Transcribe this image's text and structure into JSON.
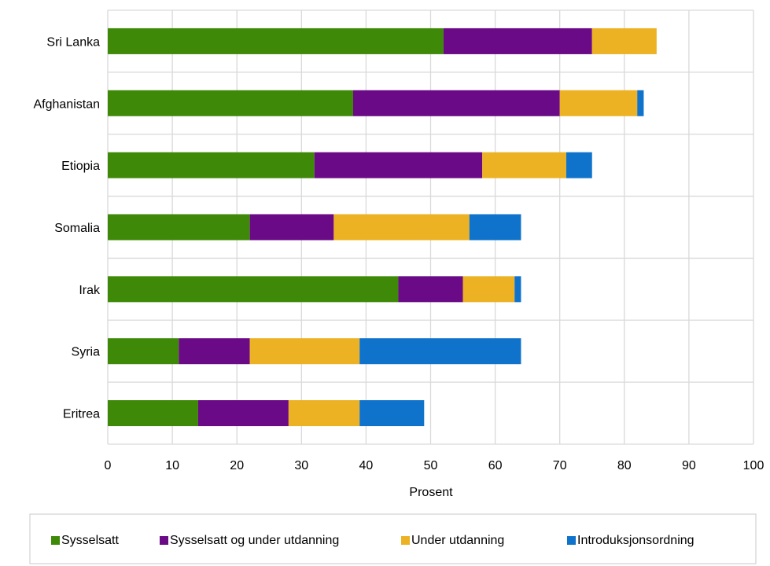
{
  "chart_data": {
    "type": "bar",
    "orientation": "horizontal",
    "stacked": true,
    "categories": [
      "Sri Lanka",
      "Afghanistan",
      "Etiopia",
      "Somalia",
      "Irak",
      "Syria",
      "Eritrea"
    ],
    "series": [
      {
        "name": "Sysselsatt",
        "color": "#3e8a08",
        "values": [
          52,
          38,
          32,
          22,
          45,
          11,
          14
        ]
      },
      {
        "name": "Sysselsatt og under utdanning",
        "color": "#6a0a86",
        "values": [
          23,
          32,
          26,
          13,
          10,
          11,
          14
        ]
      },
      {
        "name": "Under utdanning",
        "color": "#ecb223",
        "values": [
          10,
          12,
          13,
          21,
          8,
          17,
          11
        ]
      },
      {
        "name": "Introduksjonsordning",
        "color": "#0f73cc",
        "values": [
          0,
          1,
          4,
          8,
          1,
          25,
          10
        ]
      }
    ],
    "xlabel": "Prosent",
    "xlim": [
      0,
      100
    ],
    "xticks": [
      "0",
      "10",
      "20",
      "30",
      "40",
      "50",
      "60",
      "70",
      "80",
      "90",
      "100"
    ],
    "grid": true,
    "legend_position": "bottom"
  }
}
